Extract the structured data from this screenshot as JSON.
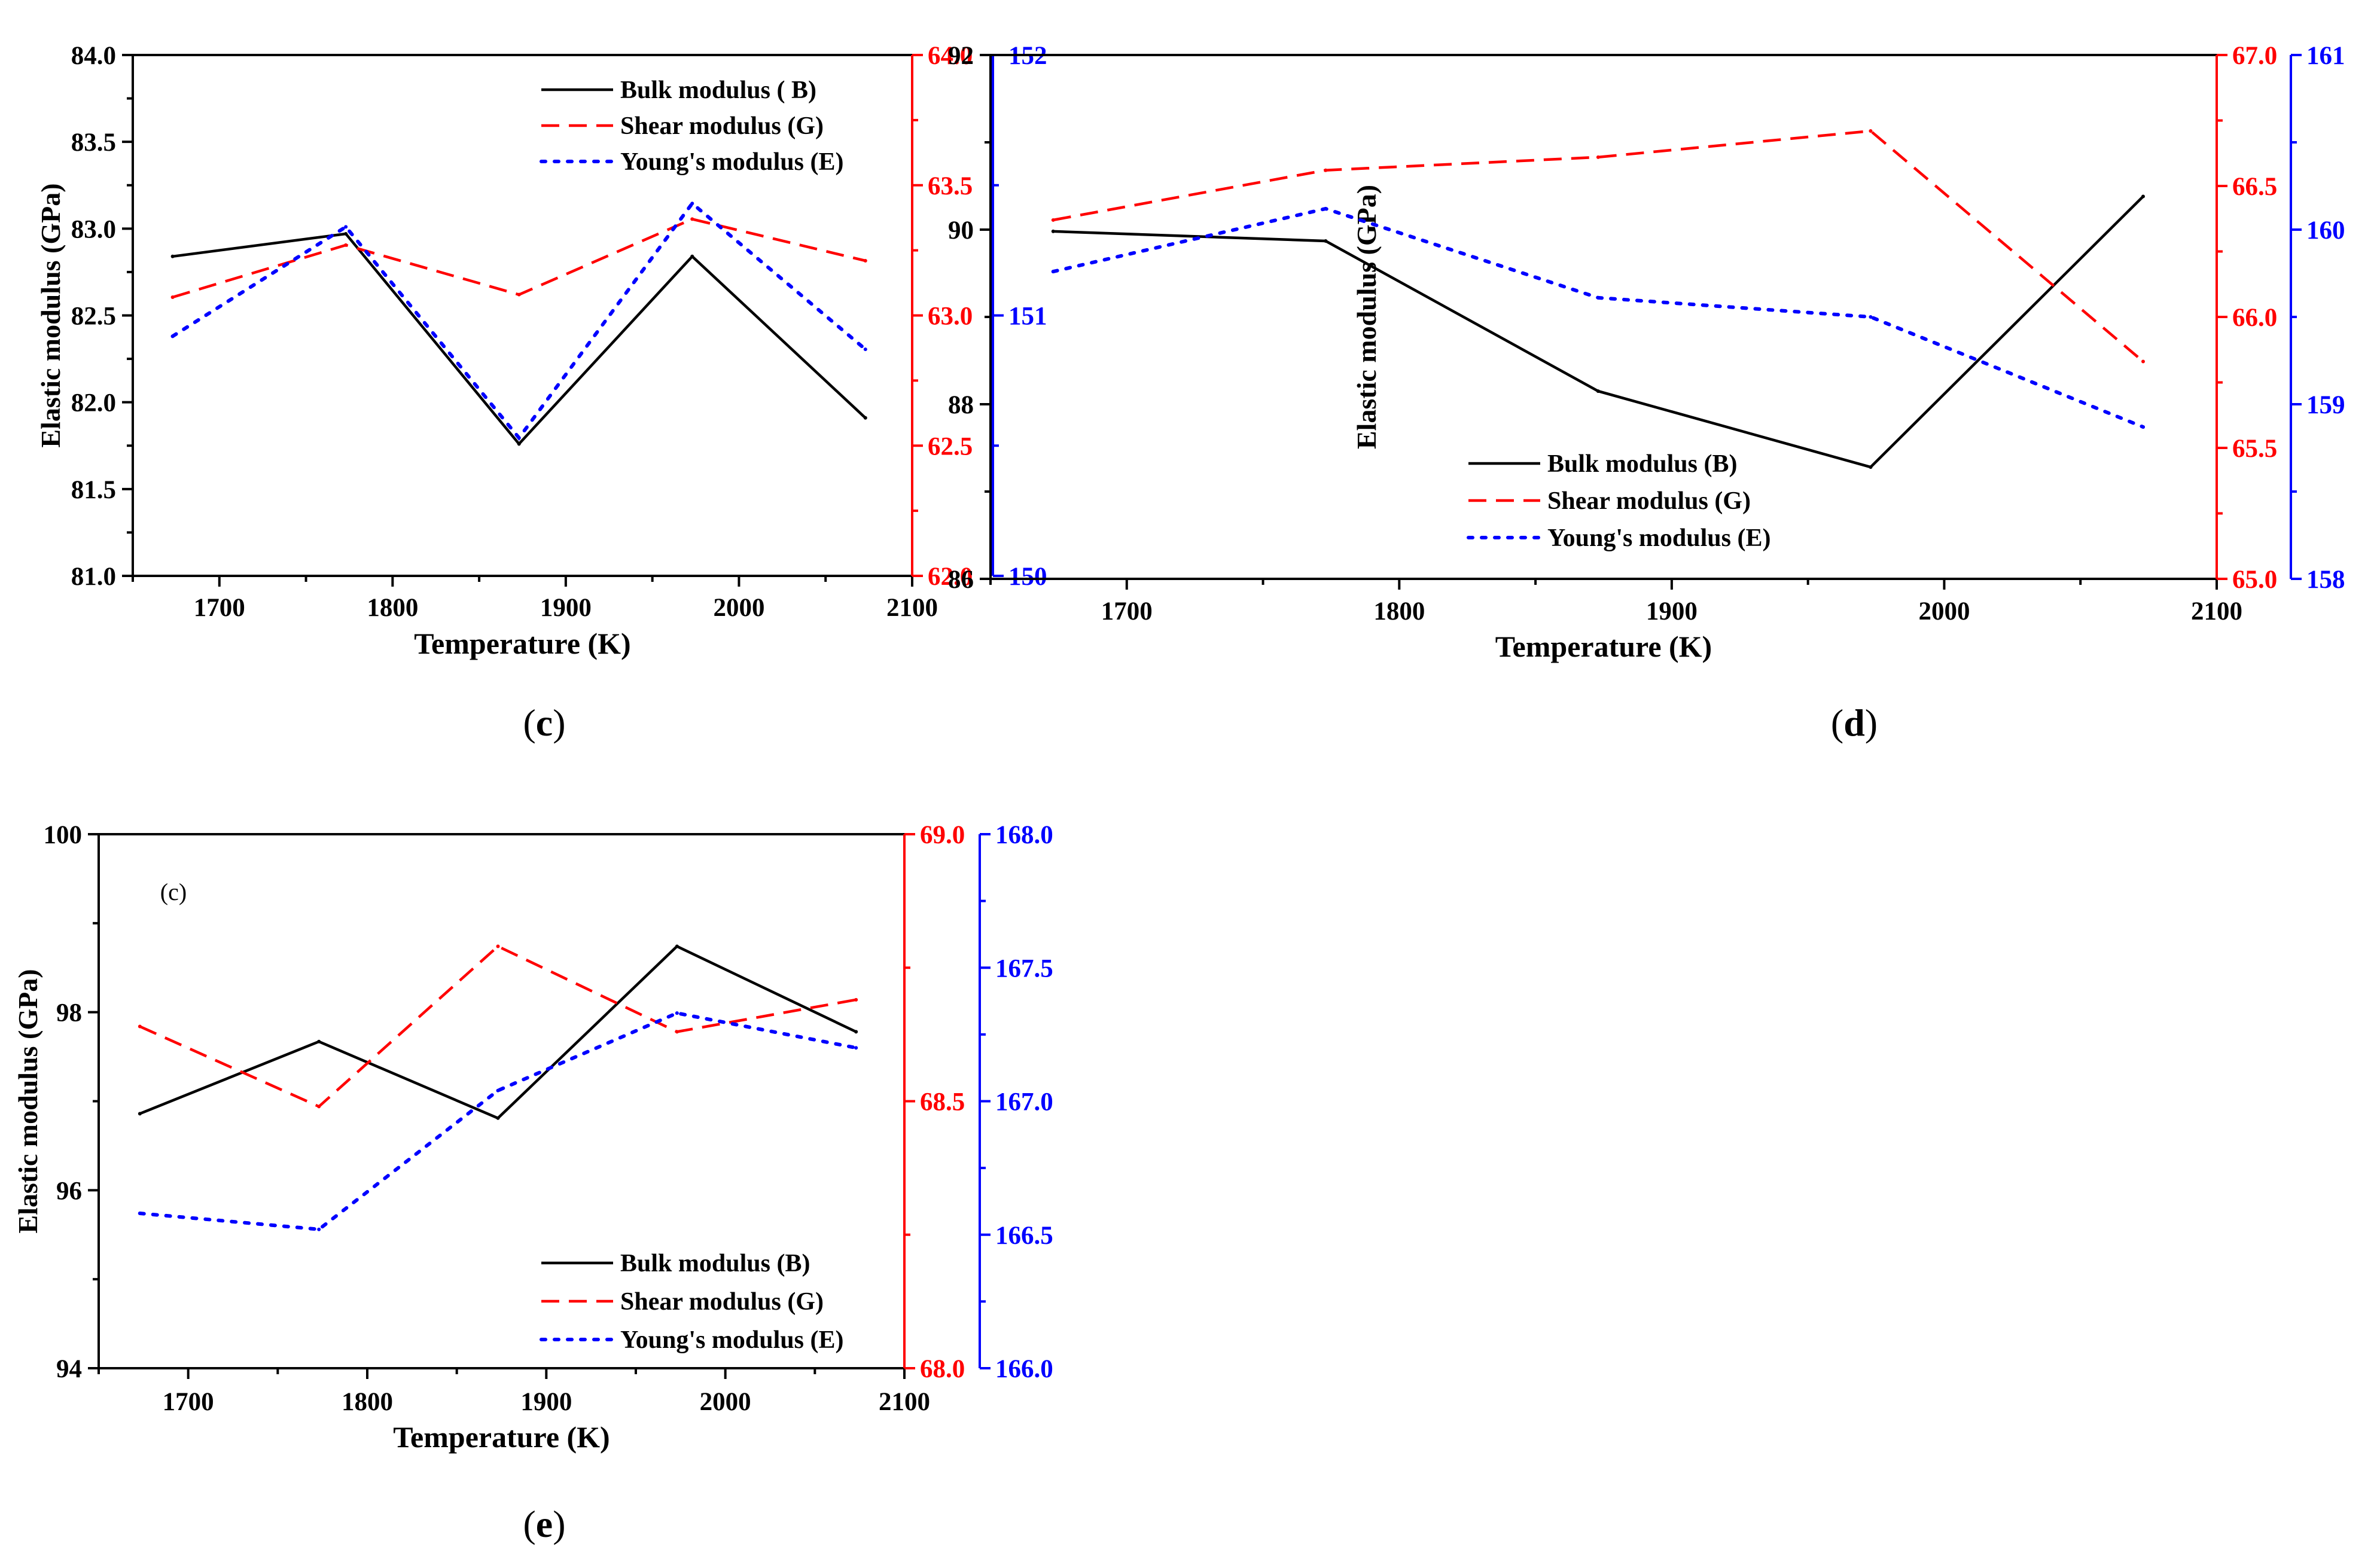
{
  "colors": {
    "bulk": "#000000",
    "shear": "#ff0000",
    "young": "#0000ff"
  },
  "chart_data": [
    {
      "type": "line",
      "caption": "c",
      "inset_label": "",
      "xlabel": "Temperature (K)",
      "ylabel": "Elastic modulus (GPa)",
      "x": [
        1673,
        1773,
        1873,
        1973,
        2073
      ],
      "xlim": [
        1650,
        2100
      ],
      "xticks": [
        1700,
        1800,
        1900,
        2000,
        2100
      ],
      "ylim_left": [
        81.0,
        84.0
      ],
      "yticks_left": [
        "81.0",
        "81.5",
        "82.0",
        "82.5",
        "83.0",
        "83.5",
        "84.0"
      ],
      "ylim_red": [
        62.0,
        64.0
      ],
      "yticks_red": [
        "62.0",
        "62.5",
        "63.0",
        "63.5",
        "64.0"
      ],
      "ylim_blue": [
        150,
        152
      ],
      "yticks_blue": [
        "150",
        "151",
        "152"
      ],
      "legend_position": "top-right",
      "series": [
        {
          "name": "Bulk modulus ( B)",
          "axis": "left",
          "style": "solid",
          "values": [
            82.84,
            82.97,
            81.76,
            82.84,
            81.91
          ]
        },
        {
          "name": "Shear modulus (G)",
          "axis": "red",
          "style": "dashed",
          "values": [
            63.07,
            63.27,
            63.08,
            63.37,
            63.21
          ]
        },
        {
          "name": "Young's modulus (E)",
          "axis": "blue",
          "style": "dotted",
          "values": [
            150.92,
            151.34,
            150.53,
            151.43,
            150.87
          ]
        }
      ]
    },
    {
      "type": "line",
      "caption": "d",
      "inset_label": "",
      "xlabel": "Temperature (K)",
      "ylabel": "Elastic modulus (GPa)",
      "x": [
        1673,
        1773,
        1873,
        1973,
        2073
      ],
      "xlim": [
        1650,
        2100
      ],
      "xticks": [
        1700,
        1800,
        1900,
        2000,
        2100
      ],
      "ylim_left": [
        86,
        92
      ],
      "yticks_left": [
        "86",
        "88",
        "90",
        "92"
      ],
      "ylim_red": [
        65.0,
        67.0
      ],
      "yticks_red": [
        "65.0",
        "65.5",
        "66.0",
        "66.5",
        "67.0"
      ],
      "ylim_blue": [
        158,
        161
      ],
      "yticks_blue": [
        "158",
        "159",
        "160",
        "161"
      ],
      "legend_position": "bottom-left",
      "series": [
        {
          "name": "Bulk modulus (B)",
          "axis": "left",
          "style": "solid",
          "values": [
            89.98,
            89.87,
            88.15,
            87.28,
            90.38
          ]
        },
        {
          "name": "Shear modulus (G)",
          "axis": "red",
          "style": "dashed",
          "values": [
            66.37,
            66.56,
            66.61,
            66.71,
            65.83
          ]
        },
        {
          "name": "Young's modulus (E)",
          "axis": "blue",
          "style": "dotted",
          "values": [
            159.76,
            160.12,
            159.61,
            159.5,
            158.87
          ]
        }
      ]
    },
    {
      "type": "line",
      "caption": "e",
      "inset_label": "(c)",
      "xlabel": "Temperature (K)",
      "ylabel": "Elastic modulus (GPa)",
      "x": [
        1673,
        1773,
        1873,
        1973,
        2073
      ],
      "xlim": [
        1650,
        2100
      ],
      "xticks": [
        1700,
        1800,
        1900,
        2000,
        2100
      ],
      "ylim_left": [
        94,
        100
      ],
      "yticks_left": [
        "94",
        "96",
        "98",
        "100"
      ],
      "ylim_red": [
        68.0,
        69.0
      ],
      "yticks_red": [
        "68.0",
        "68.5",
        "69.0"
      ],
      "ylim_blue": [
        166.0,
        168.0
      ],
      "yticks_blue": [
        "166.0",
        "166.5",
        "167.0",
        "167.5",
        "168.0"
      ],
      "legend_position": "bottom-right",
      "series": [
        {
          "name": "Bulk modulus (B)",
          "axis": "left",
          "style": "solid",
          "values": [
            96.86,
            97.67,
            96.81,
            98.74,
            97.78
          ]
        },
        {
          "name": "Shear modulus (G)",
          "axis": "red",
          "style": "dashed",
          "values": [
            68.64,
            68.49,
            68.79,
            68.63,
            68.69
          ]
        },
        {
          "name": "Young's modulus (E)",
          "axis": "blue",
          "style": "dotted",
          "values": [
            166.58,
            166.52,
            167.04,
            167.33,
            167.2
          ]
        }
      ]
    }
  ]
}
